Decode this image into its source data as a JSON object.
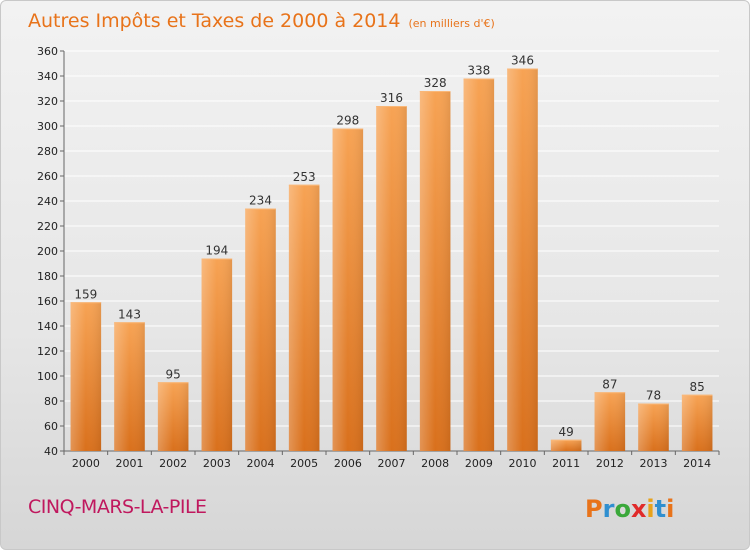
{
  "chart_data": {
    "type": "bar",
    "title": "Autres Impôts et Taxes de 2000 à 2014",
    "subtitle": "(en milliers d'€)",
    "categories": [
      "2000",
      "2001",
      "2002",
      "2003",
      "2004",
      "2005",
      "2006",
      "2007",
      "2008",
      "2009",
      "2010",
      "2011",
      "2012",
      "2013",
      "2014"
    ],
    "values": [
      159,
      143,
      95,
      194,
      234,
      253,
      298,
      316,
      328,
      338,
      346,
      49,
      87,
      78,
      85
    ],
    "yticks": [
      40,
      60,
      80,
      100,
      120,
      140,
      160,
      180,
      200,
      220,
      240,
      260,
      280,
      300,
      320,
      340,
      360
    ],
    "ylim": [
      40,
      360
    ],
    "grid": true,
    "bar_color": "#f08a2a"
  },
  "footer": {
    "commune": "CINQ-MARS-LA-PILE",
    "logo_letters": [
      "P",
      "r",
      "o",
      "x",
      "i",
      "t",
      "i"
    ],
    "logo_colors": [
      "#e8731a",
      "#2f8fd0",
      "#3aa83a",
      "#e02a2a",
      "#e8a21a",
      "#2f8fd0",
      "#e8731a"
    ]
  }
}
